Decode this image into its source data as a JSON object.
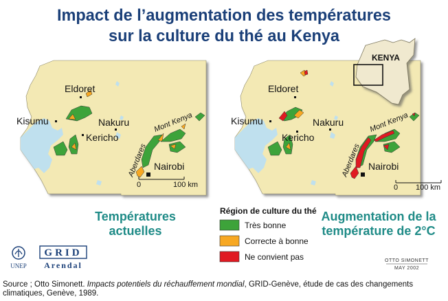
{
  "title": {
    "line1": "Impact de l’augmentation des températures",
    "line2": "sur la culture du thé au Kenya"
  },
  "map_labels": {
    "eldoret": "Eldoret",
    "kisumu": "Kisumu",
    "nakuru": "Nakuru",
    "kericho": "Kericho",
    "nairobi": "Nairobi",
    "mont_kenya": "Mont Kenya",
    "aberdares": "Aberdares",
    "scale_zero": "0",
    "scale_100": "100 km"
  },
  "inset_label": "KENYA",
  "panel_titles": {
    "left_line1": "Températures",
    "left_line2": "actuelles",
    "right_line1": "Augmentation de la",
    "right_line2": "température de 2°C"
  },
  "legend": {
    "title": "Région de culture du thé",
    "items": [
      {
        "label": "Très bonne",
        "color": "#3da33a"
      },
      {
        "label": "Correcte à bonne",
        "color": "#f7a823"
      },
      {
        "label": "Ne convient pas",
        "color": "#e01a22"
      }
    ]
  },
  "colors": {
    "title": "#1a3f78",
    "panel_title": "#1f8b87",
    "land": "#f3e9b4",
    "lake": "#bfe0ee"
  },
  "logos": {
    "unep": "UNEP",
    "grid": "GRID",
    "arendal": "Arendal"
  },
  "credit": {
    "author": "OTTO SIMONETT",
    "date": "MAY 2002"
  },
  "source": {
    "prefix": "Source ; Otto Simonett. ",
    "italic": "Impacts potentiels du réchauffement mondial",
    "suffix": ", GRID-Genève, étude de cas des changements climatiques, Genève, 1989."
  }
}
